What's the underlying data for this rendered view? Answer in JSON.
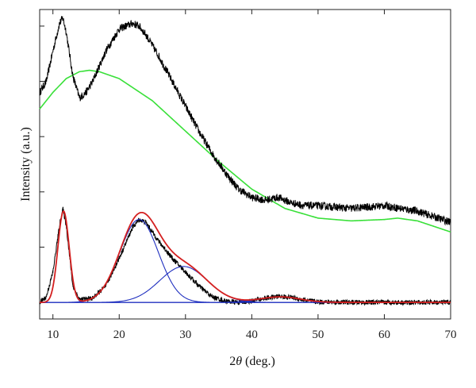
{
  "chart_data": {
    "type": "line",
    "title": "",
    "xlabel_prefix": "2",
    "xlabel_symbol": "θ",
    "xlabel_suffix": " (deg.)",
    "ylabel": "Intensity (a.u.)",
    "xlim": [
      8,
      70
    ],
    "ylim": [
      -0.6,
      10.6
    ],
    "x_ticks": [
      10,
      20,
      30,
      40,
      50,
      60,
      70
    ],
    "y_ticks_unlabeled": [
      0,
      2,
      4,
      6,
      8,
      10
    ],
    "grid": false,
    "colors": {
      "measured": "#000000",
      "background": "#39e039",
      "fit_sum": "#d42020",
      "components": "#1f2fbf",
      "baseline": "#1f2fbf"
    },
    "series": [
      {
        "role": "measured-raw",
        "color": "#000000",
        "x": [
          8,
          9,
          10,
          11,
          11.5,
          12,
          13,
          14,
          15,
          16,
          18,
          20,
          22,
          23,
          24,
          26,
          28,
          30,
          32,
          34,
          36,
          38,
          40,
          42,
          44,
          46,
          48,
          50,
          55,
          60,
          65,
          70
        ],
        "y": [
          7.6,
          8.0,
          9.1,
          10.1,
          10.3,
          9.8,
          8.2,
          7.4,
          7.6,
          8.0,
          9.1,
          9.9,
          10.1,
          10.0,
          9.7,
          8.9,
          8.0,
          7.1,
          6.2,
          5.4,
          4.7,
          4.1,
          3.8,
          3.7,
          3.8,
          3.6,
          3.5,
          3.5,
          3.4,
          3.5,
          3.3,
          2.9
        ]
      },
      {
        "role": "background",
        "color": "#39e039",
        "x": [
          8,
          10,
          12,
          14,
          15.5,
          17,
          20,
          25,
          30,
          35,
          40,
          45,
          50,
          55,
          60,
          62,
          65,
          70
        ],
        "y": [
          7.0,
          7.6,
          8.1,
          8.35,
          8.4,
          8.35,
          8.1,
          7.3,
          6.2,
          5.1,
          4.1,
          3.4,
          3.05,
          2.95,
          3.0,
          3.05,
          2.95,
          2.55
        ]
      },
      {
        "role": "background-subtracted",
        "color": "#000000",
        "x": [
          8,
          9,
          10,
          11,
          11.5,
          12,
          13,
          14,
          16,
          18,
          20,
          22,
          23,
          24,
          26,
          28,
          30,
          32,
          34,
          36,
          38,
          40,
          42,
          44,
          46,
          48,
          50,
          55,
          60,
          65,
          70
        ],
        "y": [
          0.0,
          0.2,
          1.1,
          2.8,
          3.4,
          2.8,
          0.6,
          0.1,
          0.15,
          0.6,
          1.6,
          2.7,
          3.0,
          2.9,
          2.2,
          1.6,
          1.1,
          0.6,
          0.2,
          0.05,
          0.0,
          0.05,
          0.15,
          0.22,
          0.18,
          0.08,
          0.02,
          0.0,
          0.0,
          0.0,
          0.0
        ]
      }
    ],
    "fit": {
      "components": [
        {
          "center": 11.6,
          "height": 3.3,
          "sigma": 0.85
        },
        {
          "center": 23.0,
          "height": 3.0,
          "sigma": 2.9
        },
        {
          "center": 29.7,
          "height": 1.3,
          "sigma": 3.6
        },
        {
          "center": 44.3,
          "height": 0.2,
          "sigma": 3.0
        }
      ],
      "sum_color": "#d42020",
      "component_color": "#1f2fbf"
    }
  }
}
